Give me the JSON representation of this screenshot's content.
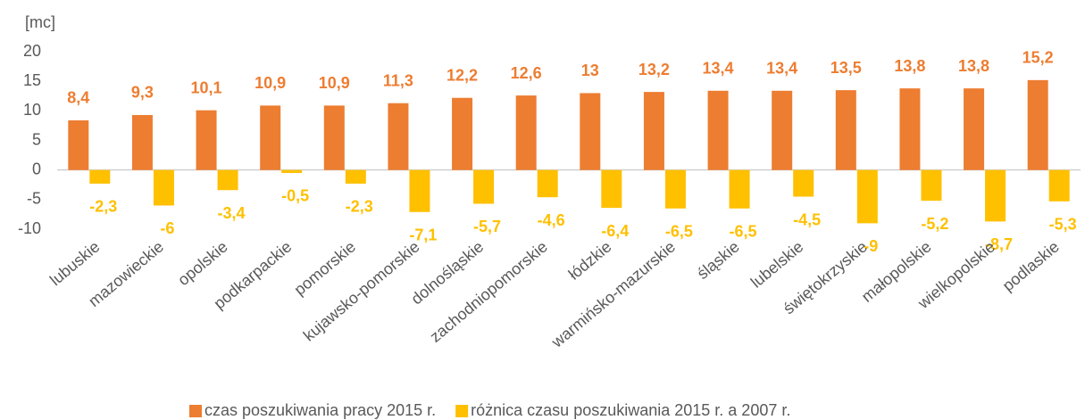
{
  "chart_data": {
    "type": "bar",
    "y_axis_label": "[mc]",
    "categories": [
      "lubuskie",
      "mazowieckie",
      "opolskie",
      "podkarpackie",
      "pomorskie",
      "kujawsko-pomorskie",
      "dolnośląskie",
      "zachodniopomorskie",
      "łódzkie",
      "warmińsko-mazurskie",
      "śląskie",
      "lubelskie",
      "świętokrzyskie",
      "małopolskie",
      "wielkopolskie",
      "podlaskie"
    ],
    "series": [
      {
        "name": "czas poszukiwania pracy 2015 r.",
        "color": "#ed7d31",
        "values": [
          8.4,
          9.3,
          10.1,
          10.9,
          10.9,
          11.3,
          12.2,
          12.6,
          13,
          13.2,
          13.4,
          13.4,
          13.5,
          13.8,
          13.8,
          15.2
        ],
        "value_labels": [
          "8,4",
          "9,3",
          "10,1",
          "10,9",
          "10,9",
          "11,3",
          "12,2",
          "12,6",
          "13",
          "13,2",
          "13,4",
          "13,4",
          "13,5",
          "13,8",
          "13,8",
          "15,2"
        ]
      },
      {
        "name": "różnica czasu poszukiwania 2015 r. a 2007 r.",
        "color": "#ffc000",
        "values": [
          -2.3,
          -6,
          -3.4,
          -0.5,
          -2.3,
          -7.1,
          -5.7,
          -4.6,
          -6.4,
          -6.5,
          -6.5,
          -4.5,
          -9,
          -5.2,
          -8.7,
          -5.3
        ],
        "value_labels": [
          "-2,3",
          "-6",
          "-3,4",
          "-0,5",
          "-2,3",
          "-7,1",
          "-5,7",
          "-4,6",
          "-6,4",
          "-6,5",
          "-6,5",
          "-4,5",
          "-9",
          "-5,2",
          "-8,7",
          "-5,3"
        ]
      }
    ],
    "ylim": [
      -10,
      20
    ],
    "yticks": [
      20,
      15,
      10,
      5,
      0,
      -5,
      -10
    ],
    "grid": false,
    "legend": "bottom"
  }
}
